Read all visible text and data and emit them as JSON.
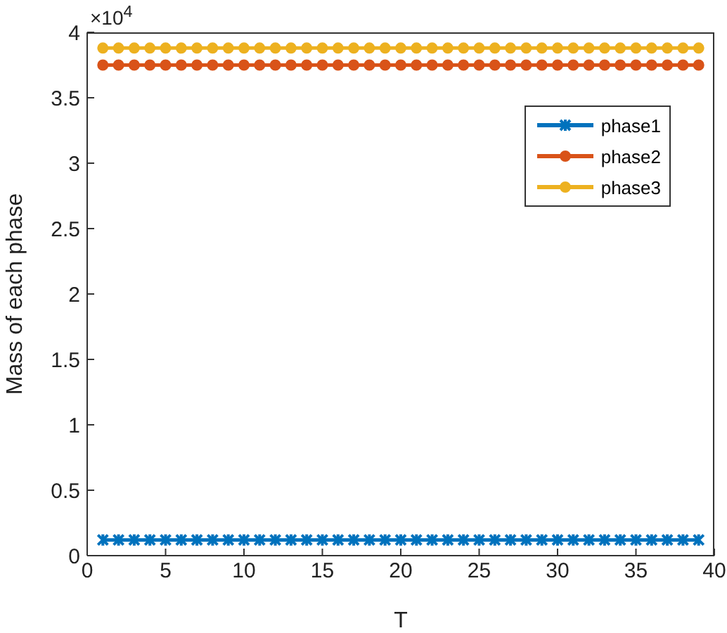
{
  "chart_data": {
    "type": "line",
    "xlabel": "T",
    "ylabel": "Mass of each phase",
    "annotations": [
      "×10$^{4}$"
    ],
    "x": [
      1,
      2,
      3,
      4,
      5,
      6,
      7,
      8,
      9,
      10,
      11,
      12,
      13,
      14,
      15,
      16,
      17,
      18,
      19,
      20,
      21,
      22,
      23,
      24,
      25,
      26,
      27,
      28,
      29,
      30,
      31,
      32,
      33,
      34,
      35,
      36,
      37,
      38,
      39
    ],
    "series": [
      {
        "name": "phase1",
        "color": "#0072bd",
        "marker": "cross",
        "values": [
          0.12,
          0.12,
          0.12,
          0.12,
          0.12,
          0.12,
          0.12,
          0.12,
          0.12,
          0.12,
          0.12,
          0.12,
          0.12,
          0.12,
          0.12,
          0.12,
          0.12,
          0.12,
          0.12,
          0.12,
          0.12,
          0.12,
          0.12,
          0.12,
          0.12,
          0.12,
          0.12,
          0.12,
          0.12,
          0.12,
          0.12,
          0.12,
          0.12,
          0.12,
          0.12,
          0.12,
          0.12,
          0.12,
          0.12
        ]
      },
      {
        "name": "phase2",
        "color": "#d95319",
        "marker": "circle",
        "values": [
          3.75,
          3.75,
          3.75,
          3.75,
          3.75,
          3.75,
          3.75,
          3.75,
          3.75,
          3.75,
          3.75,
          3.75,
          3.75,
          3.75,
          3.75,
          3.75,
          3.75,
          3.75,
          3.75,
          3.75,
          3.75,
          3.75,
          3.75,
          3.75,
          3.75,
          3.75,
          3.75,
          3.75,
          3.75,
          3.75,
          3.75,
          3.75,
          3.75,
          3.75,
          3.75,
          3.75,
          3.75,
          3.75,
          3.75
        ]
      },
      {
        "name": "phase3",
        "color": "#edb120",
        "marker": "circle",
        "values": [
          3.88,
          3.88,
          3.88,
          3.88,
          3.88,
          3.88,
          3.88,
          3.88,
          3.88,
          3.88,
          3.88,
          3.88,
          3.88,
          3.88,
          3.88,
          3.88,
          3.88,
          3.88,
          3.88,
          3.88,
          3.88,
          3.88,
          3.88,
          3.88,
          3.88,
          3.88,
          3.88,
          3.88,
          3.88,
          3.88,
          3.88,
          3.88,
          3.88,
          3.88,
          3.88,
          3.88,
          3.88,
          3.88,
          3.88
        ]
      }
    ],
    "xlim": [
      0,
      40
    ],
    "xticks": [
      0,
      5,
      10,
      15,
      20,
      25,
      30,
      35,
      40
    ],
    "ylim": [
      0,
      4
    ],
    "yticks": [
      0,
      0.5,
      1,
      1.5,
      2,
      2.5,
      3,
      3.5,
      4
    ],
    "grid": false,
    "legend": "top right",
    "line_style": "solid"
  }
}
